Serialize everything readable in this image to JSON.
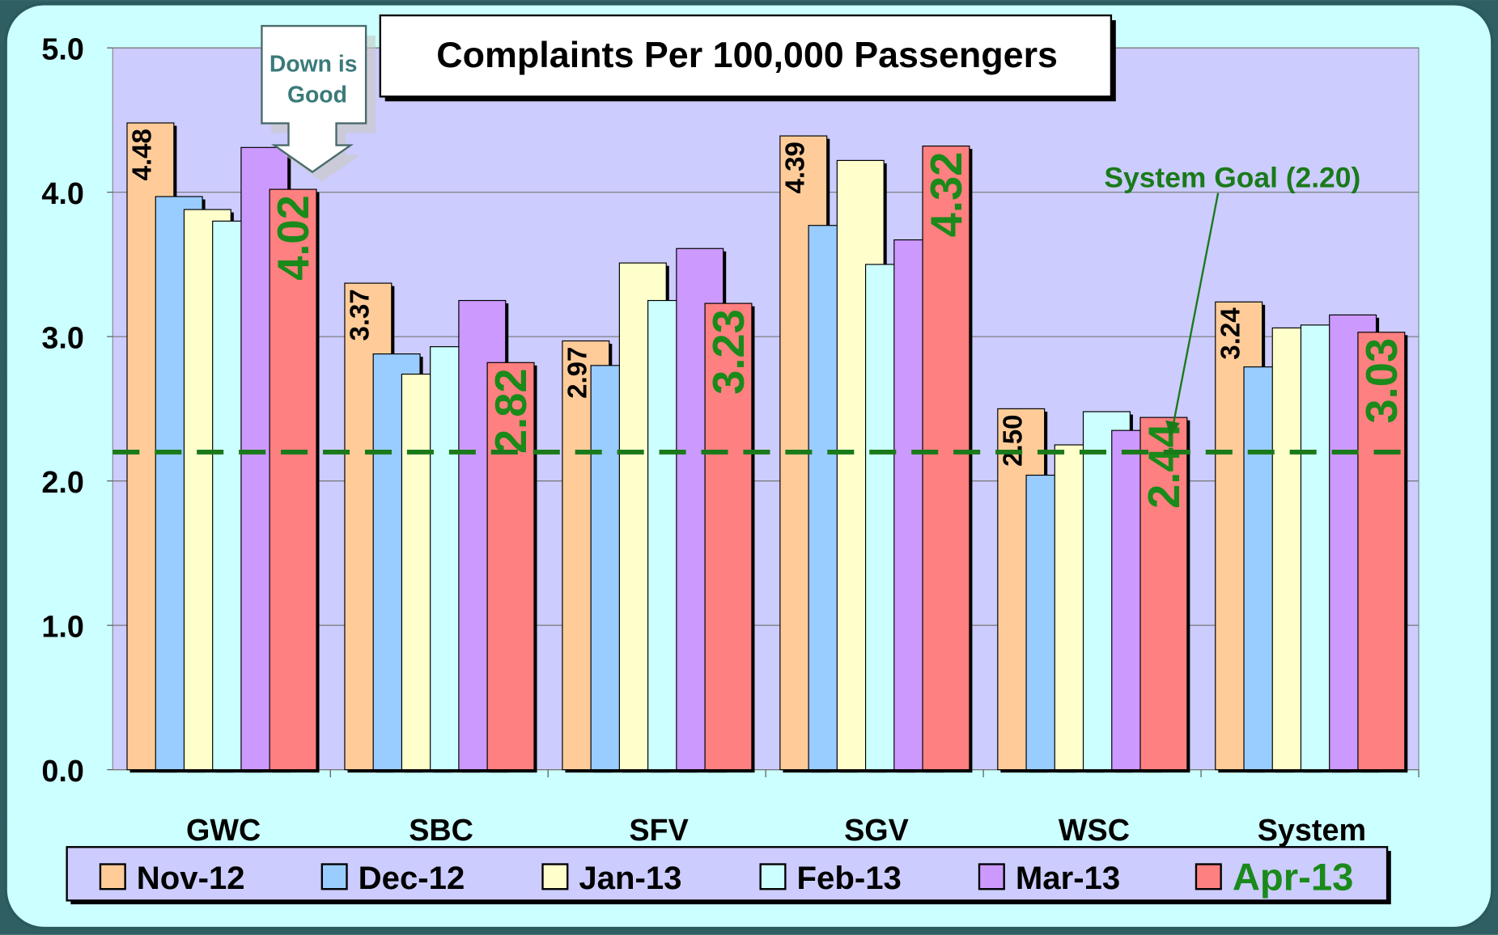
{
  "chart_data": {
    "type": "bar",
    "title": "Complaints Per 100,000 Passengers",
    "categories": [
      "GWC",
      "SBC",
      "SFV",
      "SGV",
      "WSC",
      "System"
    ],
    "series": [
      {
        "name": "Nov-12",
        "color": "#ffcc99",
        "values": [
          4.48,
          3.37,
          2.97,
          4.39,
          2.5,
          3.24
        ],
        "value_labels": [
          "4.48",
          "3.37",
          "2.97",
          "4.39",
          "2.50",
          "3.24"
        ],
        "label_color": "#000000"
      },
      {
        "name": "Dec-12",
        "color": "#99ccff",
        "values": [
          3.97,
          2.88,
          2.8,
          3.77,
          2.04,
          2.79
        ]
      },
      {
        "name": "Jan-13",
        "color": "#ffffcc",
        "values": [
          3.88,
          2.74,
          3.51,
          4.22,
          2.25,
          3.06
        ]
      },
      {
        "name": "Feb-13",
        "color": "#ccffff",
        "values": [
          3.8,
          2.93,
          3.25,
          3.5,
          2.48,
          3.08
        ]
      },
      {
        "name": "Mar-13",
        "color": "#cc99ff",
        "values": [
          4.31,
          3.25,
          3.61,
          3.67,
          2.35,
          3.15
        ]
      },
      {
        "name": "Apr-13",
        "color": "#ff8080",
        "values": [
          4.02,
          2.82,
          3.23,
          4.32,
          2.44,
          3.03
        ],
        "value_labels": [
          "4.02",
          "2.82",
          "3.23",
          "4.32",
          "2.44",
          "3.03"
        ],
        "label_color": "#1a8a1a"
      }
    ],
    "ylim": [
      0,
      5
    ],
    "yticks": [
      {
        "value": 0,
        "label": "0.0"
      },
      {
        "value": 1,
        "label": "1.0"
      },
      {
        "value": 2,
        "label": "2.0"
      },
      {
        "value": 3,
        "label": "3.0"
      },
      {
        "value": 4,
        "label": "4.0"
      },
      {
        "value": 5,
        "label": "5.0"
      }
    ],
    "grid": true,
    "goal": {
      "value": 2.2,
      "label": "System Goal (2.20)",
      "color": "#1a7a1a"
    },
    "annotation": [
      "Down is",
      "Good"
    ],
    "legend": "bottom"
  }
}
